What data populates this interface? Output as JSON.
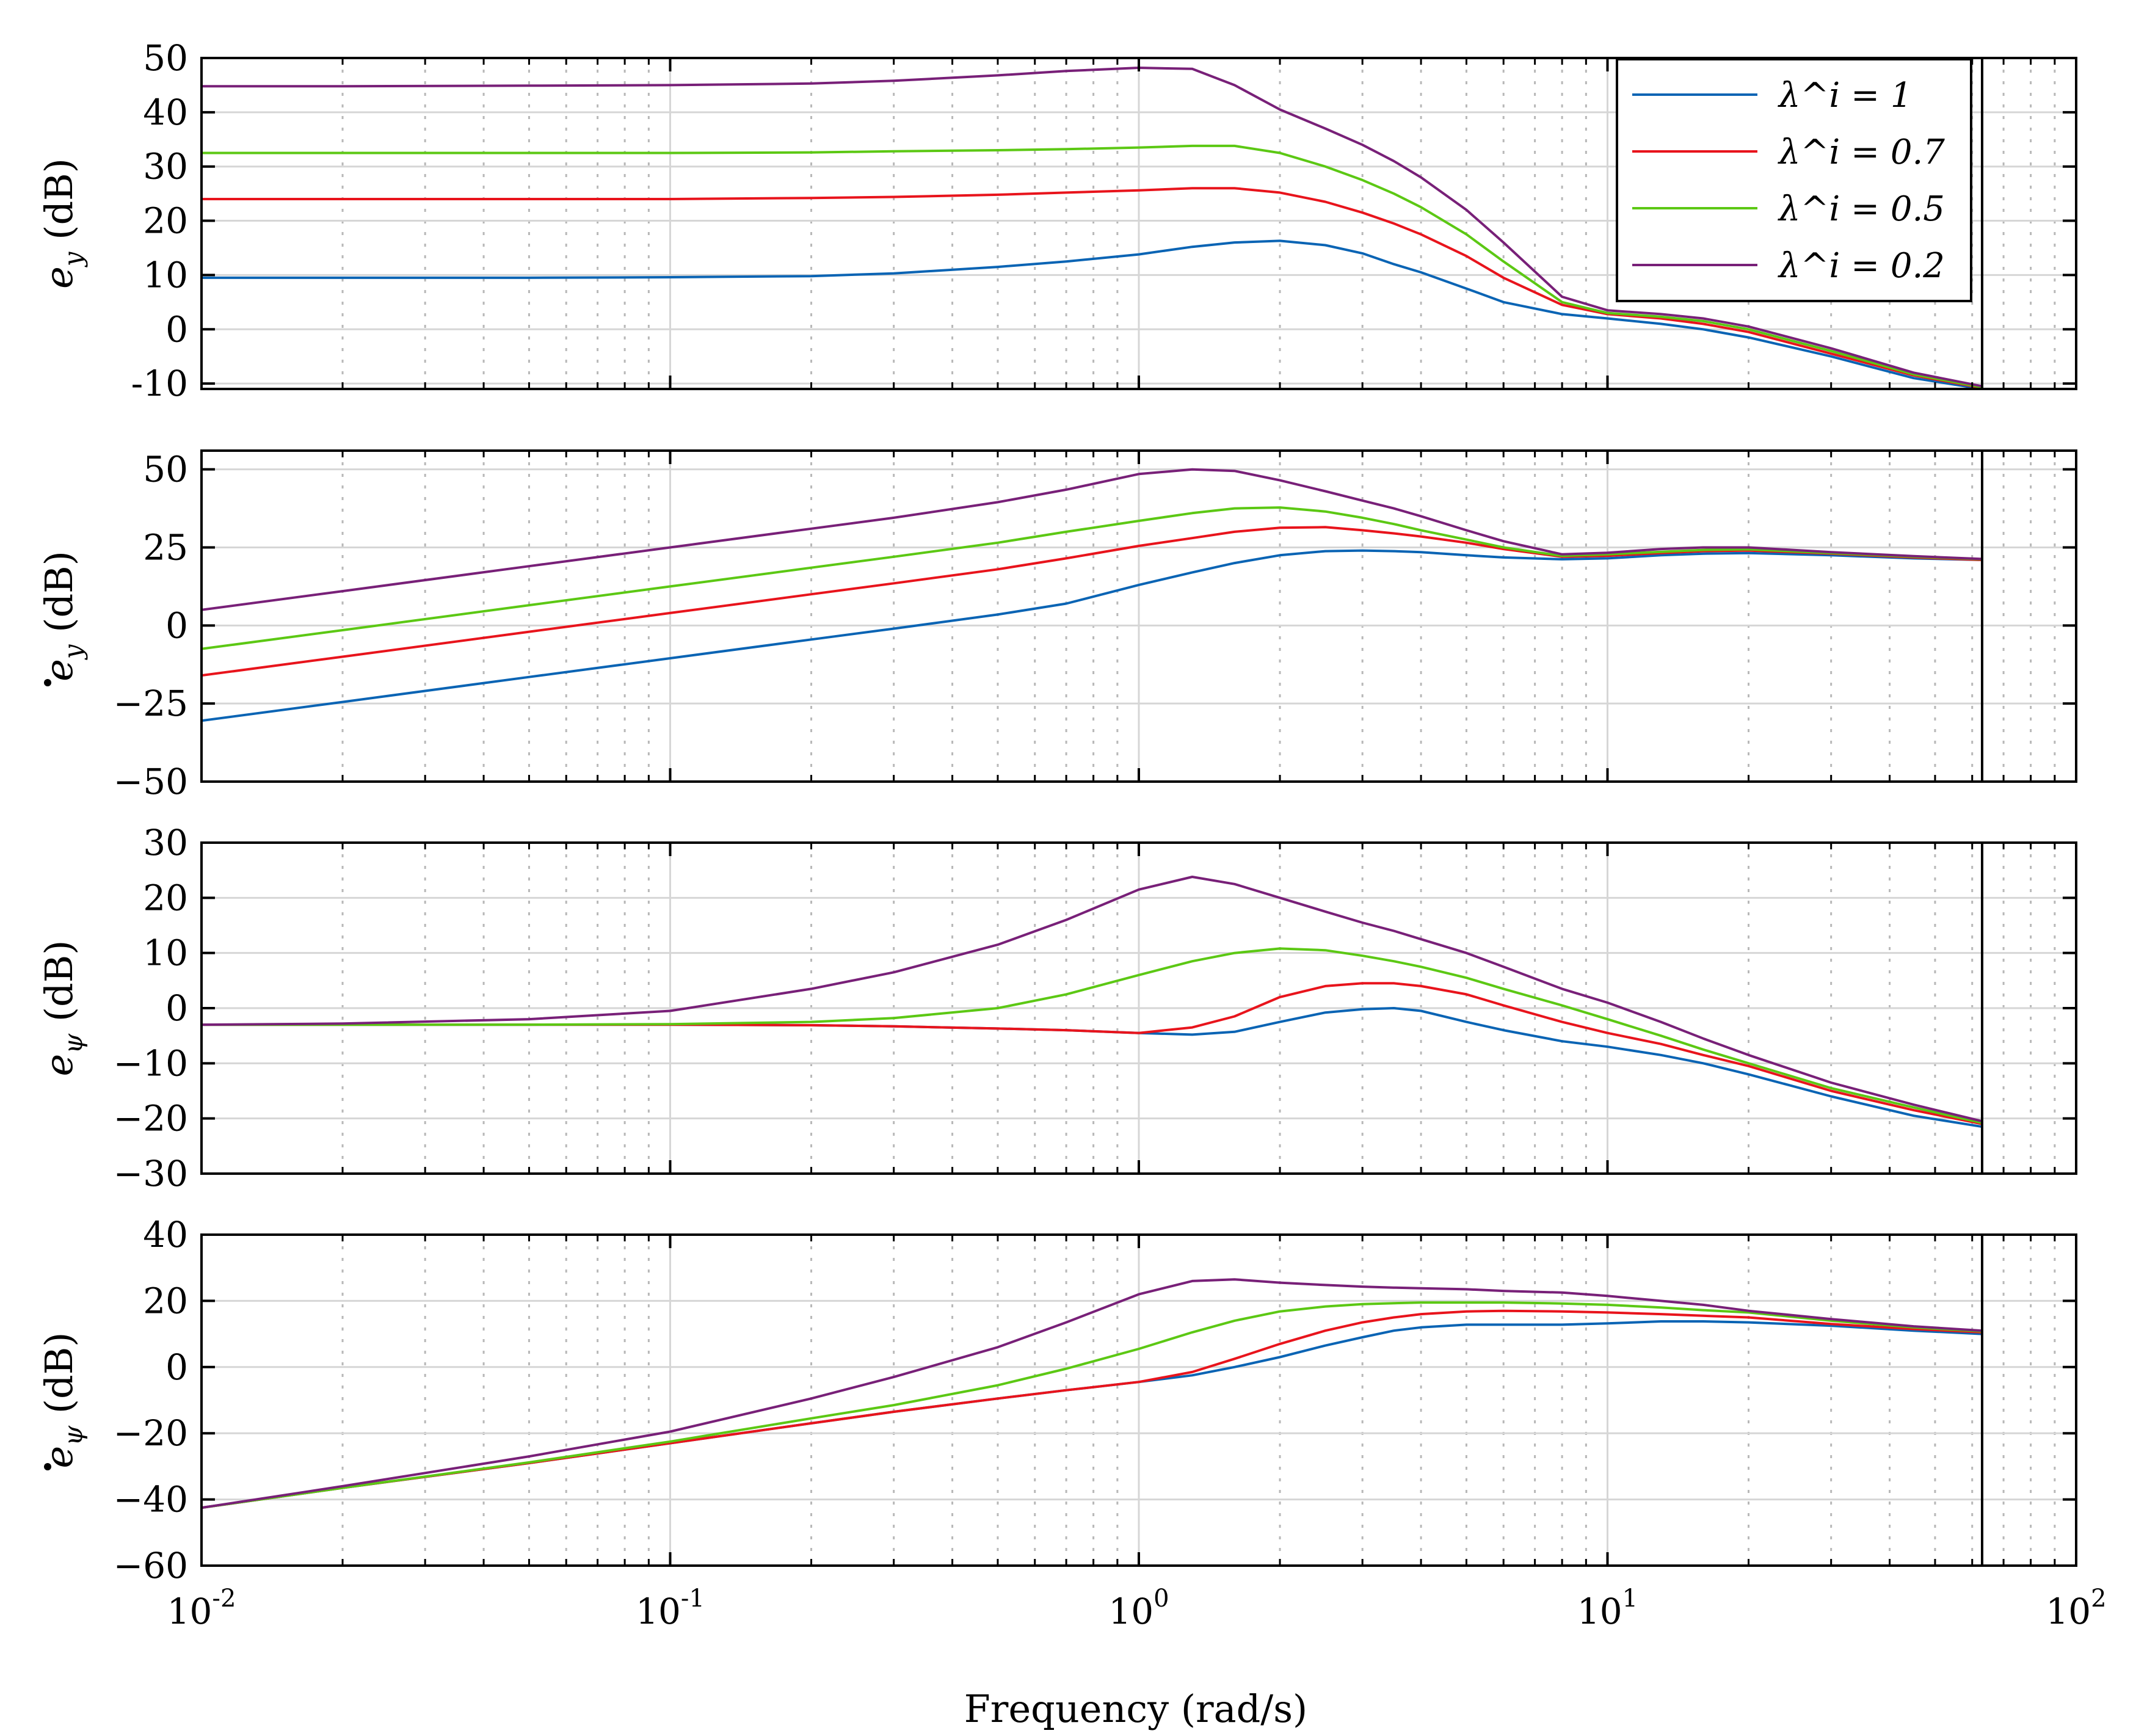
{
  "chart_data": {
    "type": "line",
    "title": "",
    "xlabel": "Frequency (rad/s)",
    "xscale": "log",
    "xlim": [
      0.01,
      100
    ],
    "xticks": [
      0.01,
      0.1,
      1,
      10,
      100
    ],
    "xtick_labels": [
      {
        "base": "10",
        "exp": "-2"
      },
      {
        "base": "10",
        "exp": "-1"
      },
      {
        "base": "10",
        "exp": "0"
      },
      {
        "base": "10",
        "exp": "1"
      },
      {
        "base": "10",
        "exp": "2"
      }
    ],
    "x_end_marker": 63,
    "grid": true,
    "legend": {
      "placement": "top-right of first panel",
      "entries": [
        {
          "label": "λ^i = 1",
          "color": "#0a64b4"
        },
        {
          "label": "λ^i = 0.7",
          "color": "#e8141c"
        },
        {
          "label": "λ^i = 0.5",
          "color": "#5cc814"
        },
        {
          "label": "λ^i = 0.2",
          "color": "#782078"
        }
      ]
    },
    "x": [
      0.01,
      0.02,
      0.05,
      0.1,
      0.2,
      0.3,
      0.5,
      0.7,
      1.0,
      1.3,
      1.6,
      2.0,
      2.5,
      3.0,
      3.5,
      4.0,
      5.0,
      6.0,
      8.0,
      10.0,
      13.0,
      16.0,
      20.0,
      30.0,
      45.0,
      63.0
    ],
    "panels": [
      {
        "ylabel": "e_y  (dB)",
        "ylabel_symbol": "e",
        "ylabel_sub": "y",
        "ylabel_dot": false,
        "ylim": [
          -11,
          50
        ],
        "yticks": [
          -10,
          0,
          10,
          20,
          30,
          40,
          50
        ],
        "ytick_labels": [
          "-10",
          "0",
          "10",
          "20",
          "30",
          "40",
          "50"
        ],
        "series": [
          {
            "name": "λ^i = 1",
            "color": "#0a64b4",
            "values": [
              9.5,
              9.5,
              9.5,
              9.6,
              9.8,
              10.3,
              11.5,
              12.5,
              13.8,
              15.2,
              16.0,
              16.3,
              15.5,
              14.0,
              12.0,
              10.5,
              7.5,
              5.0,
              2.8,
              2.0,
              1.0,
              0.0,
              -1.5,
              -5.0,
              -9.0,
              -11.0
            ]
          },
          {
            "name": "λ^i = 0.7",
            "color": "#e8141c",
            "values": [
              24.0,
              24.0,
              24.0,
              24.0,
              24.2,
              24.4,
              24.8,
              25.2,
              25.6,
              26.0,
              26.0,
              25.2,
              23.5,
              21.5,
              19.5,
              17.5,
              13.5,
              9.5,
              4.5,
              2.8,
              2.0,
              1.0,
              -0.5,
              -4.5,
              -8.5,
              -10.8
            ]
          },
          {
            "name": "λ^i = 0.5",
            "color": "#5cc814",
            "values": [
              32.5,
              32.5,
              32.5,
              32.5,
              32.6,
              32.8,
              33.0,
              33.2,
              33.5,
              33.8,
              33.8,
              32.5,
              30.0,
              27.5,
              25.0,
              22.5,
              17.5,
              12.5,
              5.0,
              3.0,
              2.3,
              1.5,
              0.0,
              -4.0,
              -8.3,
              -10.7
            ]
          },
          {
            "name": "λ^i = 0.2",
            "color": "#782078",
            "values": [
              44.8,
              44.8,
              44.9,
              45.0,
              45.3,
              45.8,
              46.8,
              47.6,
              48.2,
              48.0,
              45.0,
              40.5,
              37.0,
              34.0,
              31.0,
              28.0,
              22.0,
              16.0,
              6.0,
              3.5,
              2.8,
              2.0,
              0.5,
              -3.5,
              -8.0,
              -10.5
            ]
          }
        ]
      },
      {
        "ylabel": "ė_y  (dB)",
        "ylabel_symbol": "e",
        "ylabel_sub": "y",
        "ylabel_dot": true,
        "ylim": [
          -50,
          56
        ],
        "yticks": [
          -50,
          -25,
          0,
          25,
          50
        ],
        "ytick_labels": [
          "−50",
          "−25",
          "0",
          "25",
          "50"
        ],
        "series": [
          {
            "name": "λ^i = 1",
            "color": "#0a64b4",
            "values": [
              -30.5,
              -24.5,
              -16.5,
              -10.5,
              -4.5,
              -1.0,
              3.5,
              7.0,
              13.0,
              17.0,
              20.0,
              22.5,
              23.8,
              24.0,
              23.8,
              23.5,
              22.5,
              21.8,
              21.2,
              21.5,
              22.5,
              23.0,
              23.2,
              22.5,
              21.5,
              21.0
            ]
          },
          {
            "name": "λ^i = 0.7",
            "color": "#e8141c",
            "values": [
              -16.0,
              -10.0,
              -2.0,
              4.0,
              10.0,
              13.5,
              18.0,
              21.5,
              25.5,
              28.0,
              30.0,
              31.3,
              31.5,
              30.5,
              29.5,
              28.5,
              26.5,
              24.5,
              22.0,
              22.3,
              23.2,
              23.8,
              24.0,
              23.0,
              21.8,
              21.0
            ]
          },
          {
            "name": "λ^i = 0.5",
            "color": "#5cc814",
            "values": [
              -7.5,
              -1.5,
              6.5,
              12.5,
              18.5,
              22.0,
              26.5,
              30.0,
              33.5,
              36.0,
              37.5,
              37.8,
              36.5,
              34.5,
              32.5,
              30.5,
              27.5,
              25.0,
              22.3,
              22.8,
              23.6,
              24.2,
              24.4,
              23.2,
              22.0,
              21.2
            ]
          },
          {
            "name": "λ^i = 0.2",
            "color": "#782078",
            "values": [
              5.0,
              11.0,
              19.0,
              25.0,
              31.0,
              34.5,
              39.5,
              43.5,
              48.5,
              50.0,
              49.5,
              46.5,
              43.0,
              40.0,
              37.5,
              35.0,
              30.5,
              27.0,
              22.8,
              23.3,
              24.5,
              25.0,
              25.0,
              23.5,
              22.2,
              21.3
            ]
          }
        ]
      },
      {
        "ylabel": "e_ψ  (dB)",
        "ylabel_symbol": "e",
        "ylabel_sub": "ψ",
        "ylabel_dot": false,
        "ylim": [
          -30,
          30
        ],
        "yticks": [
          -30,
          -20,
          -10,
          0,
          10,
          20,
          30
        ],
        "ytick_labels": [
          "−30",
          "−20",
          "−10",
          "0",
          "10",
          "20",
          "30"
        ],
        "series": [
          {
            "name": "λ^i = 1",
            "color": "#0a64b4",
            "values": [
              -3.0,
              -3.0,
              -3.0,
              -3.0,
              -3.1,
              -3.3,
              -3.7,
              -4.0,
              -4.5,
              -4.8,
              -4.3,
              -2.5,
              -0.8,
              -0.2,
              0.0,
              -0.5,
              -2.5,
              -4.0,
              -6.0,
              -7.0,
              -8.5,
              -10.0,
              -12.0,
              -16.0,
              -19.5,
              -21.5
            ]
          },
          {
            "name": "λ^i = 0.7",
            "color": "#e8141c",
            "values": [
              -3.0,
              -3.0,
              -3.0,
              -3.0,
              -3.1,
              -3.3,
              -3.7,
              -4.0,
              -4.5,
              -3.5,
              -1.5,
              2.0,
              4.0,
              4.5,
              4.5,
              4.0,
              2.5,
              0.5,
              -2.5,
              -4.5,
              -6.5,
              -8.5,
              -10.5,
              -15.0,
              -18.5,
              -21.0
            ]
          },
          {
            "name": "λ^i = 0.5",
            "color": "#5cc814",
            "values": [
              -3.0,
              -3.0,
              -3.0,
              -2.9,
              -2.5,
              -1.8,
              0.0,
              2.5,
              6.0,
              8.5,
              10.0,
              10.8,
              10.5,
              9.5,
              8.5,
              7.5,
              5.5,
              3.5,
              0.5,
              -2.0,
              -5.0,
              -7.5,
              -10.0,
              -14.5,
              -18.0,
              -20.8
            ]
          },
          {
            "name": "λ^i = 0.2",
            "color": "#782078",
            "values": [
              -3.0,
              -2.8,
              -2.0,
              -0.5,
              3.5,
              6.5,
              11.5,
              16.0,
              21.5,
              23.8,
              22.5,
              20.0,
              17.5,
              15.5,
              14.0,
              12.5,
              10.0,
              7.5,
              3.5,
              1.0,
              -2.5,
              -5.5,
              -8.5,
              -13.5,
              -17.5,
              -20.5
            ]
          }
        ]
      },
      {
        "ylabel": "ė_ψ  (dB)",
        "ylabel_symbol": "e",
        "ylabel_sub": "ψ",
        "ylabel_dot": true,
        "ylim": [
          -60,
          40
        ],
        "yticks": [
          -60,
          -40,
          -20,
          0,
          20,
          40
        ],
        "ytick_labels": [
          "−60",
          "−40",
          "−20",
          "0",
          "20",
          "40"
        ],
        "series": [
          {
            "name": "λ^i = 1",
            "color": "#0a64b4",
            "values": [
              -42.5,
              -36.5,
              -29.0,
              -23.0,
              -17.0,
              -13.5,
              -9.5,
              -7.0,
              -4.5,
              -2.5,
              0.0,
              3.0,
              6.5,
              9.0,
              11.0,
              12.0,
              12.8,
              12.8,
              12.8,
              13.2,
              13.8,
              13.8,
              13.5,
              12.5,
              11.0,
              10.0
            ]
          },
          {
            "name": "λ^i = 0.7",
            "color": "#e8141c",
            "values": [
              -42.5,
              -36.5,
              -29.0,
              -23.0,
              -17.0,
              -13.5,
              -9.5,
              -7.0,
              -4.5,
              -1.5,
              2.5,
              7.0,
              11.0,
              13.5,
              15.0,
              16.0,
              16.8,
              17.0,
              16.8,
              16.5,
              16.0,
              15.5,
              15.0,
              13.0,
              11.5,
              10.5
            ]
          },
          {
            "name": "λ^i = 0.5",
            "color": "#5cc814",
            "values": [
              -42.5,
              -36.5,
              -28.8,
              -22.5,
              -15.5,
              -11.5,
              -5.5,
              -0.5,
              5.5,
              10.5,
              14.0,
              16.8,
              18.3,
              19.0,
              19.3,
              19.5,
              19.5,
              19.5,
              19.2,
              18.8,
              18.0,
              17.2,
              16.5,
              14.0,
              12.0,
              10.8
            ]
          },
          {
            "name": "λ^i = 0.2",
            "color": "#782078",
            "values": [
              -42.5,
              -36.0,
              -27.0,
              -19.5,
              -9.5,
              -3.0,
              6.0,
              13.5,
              22.0,
              26.0,
              26.5,
              25.5,
              24.8,
              24.3,
              24.0,
              23.8,
              23.5,
              23.0,
              22.5,
              21.5,
              20.0,
              18.8,
              17.0,
              14.5,
              12.3,
              11.0
            ]
          }
        ]
      }
    ]
  }
}
